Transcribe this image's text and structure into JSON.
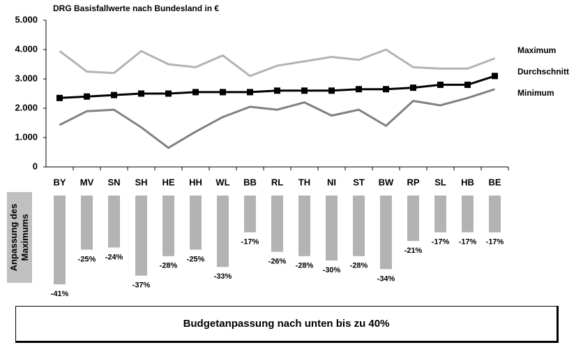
{
  "chart_data": [
    {
      "type": "line",
      "title": "DRG Basisfallwerte nach Bundesland in €",
      "categories": [
        "BY",
        "MV",
        "SN",
        "SH",
        "HE",
        "HH",
        "WL",
        "BB",
        "RL",
        "TH",
        "NI",
        "ST",
        "BW",
        "RP",
        "SL",
        "HB",
        "BE"
      ],
      "series": [
        {
          "name": "Maximum",
          "color": "#b3b3b3",
          "values": [
            3950,
            3250,
            3200,
            3950,
            3500,
            3400,
            3800,
            3100,
            3450,
            3600,
            3750,
            3650,
            4000,
            3400,
            3350,
            3350,
            3700
          ]
        },
        {
          "name": "Durchschnitt",
          "color": "#000000",
          "marker": "square",
          "values": [
            2350,
            2400,
            2450,
            2500,
            2500,
            2550,
            2550,
            2550,
            2600,
            2600,
            2600,
            2650,
            2650,
            2700,
            2800,
            2800,
            3100
          ]
        },
        {
          "name": "Minimum",
          "color": "#808080",
          "values": [
            1430,
            1900,
            1950,
            1350,
            650,
            1200,
            1700,
            2050,
            1950,
            2200,
            1750,
            1950,
            1400,
            2250,
            2100,
            2350,
            2650
          ]
        }
      ],
      "ylim": [
        0,
        5000
      ],
      "yticks": [
        0,
        {
          "value": 1000,
          "label": "1.000"
        },
        {
          "value": 2000,
          "label": "2.000"
        },
        {
          "value": 3000,
          "label": "3.000"
        },
        {
          "value": 4000,
          "label": "4.000"
        },
        {
          "value": 5000,
          "label": "5.000"
        }
      ],
      "legend": "right"
    },
    {
      "type": "bar",
      "y_label": "Anpassung des Maximums",
      "color": "#b3b3b3",
      "values": [
        -41,
        -25,
        -24,
        -37,
        -28,
        -25,
        -33,
        -17,
        -26,
        -28,
        -30,
        -28,
        -34,
        -21,
        -17,
        -17,
        -17
      ],
      "value_labels": [
        "-41%",
        "-25%",
        "-24%",
        "-37%",
        "-28%",
        "-25%",
        "-33%",
        "-17%",
        "-26%",
        "-28%",
        "-30%",
        "-28%",
        "-34%",
        "-21%",
        "-17%",
        "-17%",
        "-17%"
      ],
      "ylim": [
        -45,
        0
      ]
    }
  ],
  "footer": {
    "text": "Budgetanpassung nach unten bis zu 40%"
  }
}
